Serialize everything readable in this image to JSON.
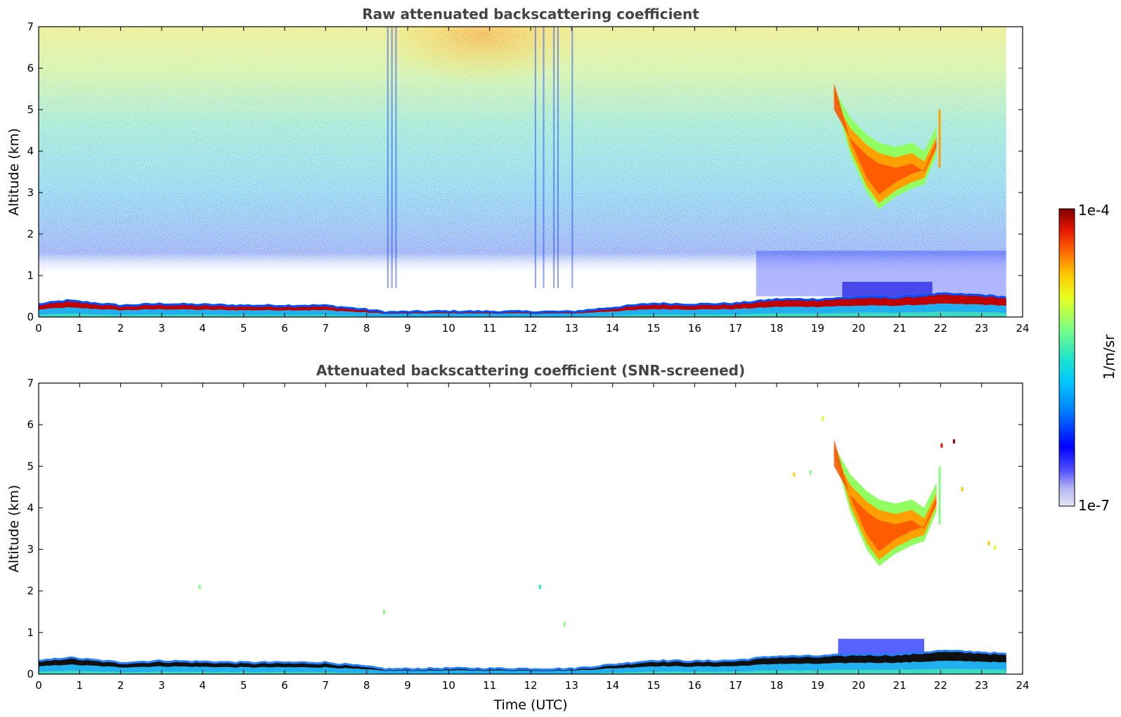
{
  "chart_data": [
    {
      "type": "heatmap",
      "title": "Raw attenuated backscattering coefficient",
      "xlabel": "",
      "ylabel": "Altitude (km)",
      "xlim": [
        0,
        24
      ],
      "ylim": [
        0,
        7
      ],
      "xticks": [
        "0",
        "1",
        "2",
        "3",
        "4",
        "5",
        "6",
        "7",
        "8",
        "9",
        "10",
        "11",
        "12",
        "13",
        "14",
        "15",
        "16",
        "17",
        "18",
        "19",
        "20",
        "21",
        "22",
        "23",
        "24"
      ],
      "yticks": [
        "0",
        "1",
        "2",
        "3",
        "4",
        "5",
        "6",
        "7"
      ],
      "data_end_time": 23.6,
      "boundary_layer_top_km": [
        {
          "t": 0,
          "z": 0.33
        },
        {
          "t": 0.7,
          "z": 0.42
        },
        {
          "t": 2,
          "z": 0.3
        },
        {
          "t": 3,
          "z": 0.34
        },
        {
          "t": 5,
          "z": 0.3
        },
        {
          "t": 7,
          "z": 0.3
        },
        {
          "t": 8,
          "z": 0.2
        },
        {
          "t": 8.5,
          "z": 0.14
        },
        {
          "t": 10,
          "z": 0.16
        },
        {
          "t": 12,
          "z": 0.15
        },
        {
          "t": 13,
          "z": 0.15
        },
        {
          "t": 14,
          "z": 0.25
        },
        {
          "t": 15,
          "z": 0.35
        },
        {
          "t": 16,
          "z": 0.33
        },
        {
          "t": 17,
          "z": 0.35
        },
        {
          "t": 18,
          "z": 0.45
        },
        {
          "t": 19,
          "z": 0.45
        },
        {
          "t": 20,
          "z": 0.5
        },
        {
          "t": 21,
          "z": 0.5
        },
        {
          "t": 22,
          "z": 0.58
        },
        {
          "t": 23,
          "z": 0.55
        },
        {
          "t": 23.6,
          "z": 0.5
        }
      ],
      "cloud_layer": {
        "t_start": 19.4,
        "t_end": 21.9,
        "base_km": [
          {
            "t": 19.4,
            "z": 5.3
          },
          {
            "t": 19.8,
            "z": 3.9
          },
          {
            "t": 20.2,
            "z": 3.0
          },
          {
            "t": 20.5,
            "z": 2.6
          },
          {
            "t": 20.9,
            "z": 2.9
          },
          {
            "t": 21.3,
            "z": 3.1
          },
          {
            "t": 21.6,
            "z": 3.2
          },
          {
            "t": 21.9,
            "z": 3.9
          }
        ],
        "top_km": [
          {
            "t": 19.4,
            "z": 5.5
          },
          {
            "t": 19.8,
            "z": 4.8
          },
          {
            "t": 20.2,
            "z": 4.4
          },
          {
            "t": 20.5,
            "z": 4.2
          },
          {
            "t": 20.9,
            "z": 4.1
          },
          {
            "t": 21.3,
            "z": 4.2
          },
          {
            "t": 21.6,
            "z": 4.0
          },
          {
            "t": 21.9,
            "z": 4.6
          }
        ]
      }
    },
    {
      "type": "heatmap",
      "title": "Attenuated backscattering coefficient (SNR-screened)",
      "xlabel": "Time (UTC)",
      "ylabel": "Altitude (km)",
      "xlim": [
        0,
        24
      ],
      "ylim": [
        0,
        7
      ],
      "xticks": [
        "0",
        "1",
        "2",
        "3",
        "4",
        "5",
        "6",
        "7",
        "8",
        "9",
        "10",
        "11",
        "12",
        "13",
        "14",
        "15",
        "16",
        "17",
        "18",
        "19",
        "20",
        "21",
        "22",
        "23",
        "24"
      ],
      "yticks": [
        "0",
        "1",
        "2",
        "3",
        "4",
        "5",
        "6",
        "7"
      ],
      "data_end_time": 23.6
    }
  ],
  "colorbar": {
    "label": "1/m/sr",
    "max_label": "1e-4",
    "min_label": "1e-7",
    "colors": [
      "#e6e6f5",
      "#b4b4f0",
      "#5050ff",
      "#0000ff",
      "#0080ff",
      "#00c8ff",
      "#20e6c8",
      "#80ff80",
      "#e6ff20",
      "#ffc800",
      "#ff6400",
      "#e61400",
      "#800000"
    ]
  }
}
